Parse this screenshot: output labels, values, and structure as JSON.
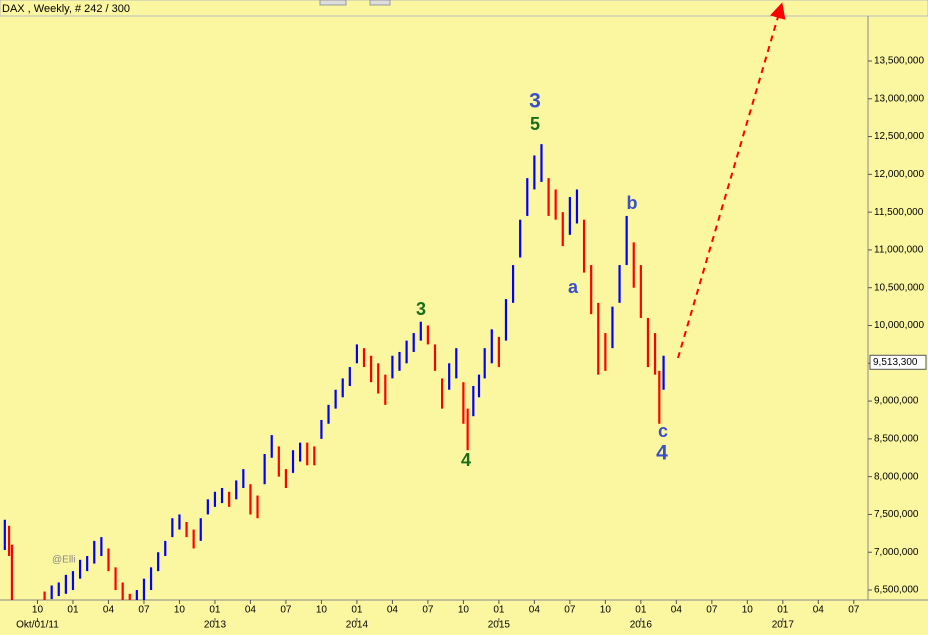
{
  "chart_data": {
    "type": "ohlc",
    "title": "DAX , Weekly, # 242 / 300",
    "xlim": [
      2011.486,
      2017.6
    ],
    "ylim": [
      6368000,
      14307000
    ],
    "xticks": [
      {
        "value": 2011.75,
        "label": "10"
      },
      {
        "value": 2012.0,
        "label": "01"
      },
      {
        "value": 2012.25,
        "label": "04"
      },
      {
        "value": 2012.5,
        "label": "07"
      },
      {
        "value": 2012.75,
        "label": "10"
      },
      {
        "value": 2013.0,
        "label": "01"
      },
      {
        "value": 2013.25,
        "label": "04"
      },
      {
        "value": 2013.5,
        "label": "07"
      },
      {
        "value": 2013.75,
        "label": "10"
      },
      {
        "value": 2014.0,
        "label": "01"
      },
      {
        "value": 2014.25,
        "label": "04"
      },
      {
        "value": 2014.5,
        "label": "07"
      },
      {
        "value": 2014.75,
        "label": "10"
      },
      {
        "value": 2015.0,
        "label": "01"
      },
      {
        "value": 2015.25,
        "label": "04"
      },
      {
        "value": 2015.5,
        "label": "07"
      },
      {
        "value": 2015.75,
        "label": "10"
      },
      {
        "value": 2016.0,
        "label": "01"
      },
      {
        "value": 2016.25,
        "label": "04"
      },
      {
        "value": 2016.5,
        "label": "07"
      },
      {
        "value": 2016.75,
        "label": "10"
      },
      {
        "value": 2017.0,
        "label": "01"
      },
      {
        "value": 2017.25,
        "label": "04"
      },
      {
        "value": 2017.5,
        "label": "07"
      }
    ],
    "xticks_major": [
      {
        "value": 2011.75,
        "label": "Okt/01/11"
      },
      {
        "value": 2013.0,
        "label": "2013"
      },
      {
        "value": 2014.0,
        "label": "2014"
      },
      {
        "value": 2015.0,
        "label": "2015"
      },
      {
        "value": 2016.0,
        "label": "2016"
      },
      {
        "value": 2017.0,
        "label": "2017"
      }
    ],
    "yticks": [
      {
        "value": 6500000,
        "label": "6,500,000"
      },
      {
        "value": 7000000,
        "label": "7,000,000"
      },
      {
        "value": 7500000,
        "label": "7,500,000"
      },
      {
        "value": 8000000,
        "label": "8,000,000"
      },
      {
        "value": 8500000,
        "label": "8,500,000"
      },
      {
        "value": 9000000,
        "label": "9,000,000"
      },
      {
        "value": 9500000,
        "label": "9,500,000"
      },
      {
        "value": 10000000,
        "label": "10,000,000"
      },
      {
        "value": 10500000,
        "label": "10,500,000"
      },
      {
        "value": 11000000,
        "label": "11,000,000"
      },
      {
        "value": 11500000,
        "label": "11,500,000"
      },
      {
        "value": 12000000,
        "label": "12,000,000"
      },
      {
        "value": 12500000,
        "label": "12,500,000"
      },
      {
        "value": 13000000,
        "label": "13,000,000"
      },
      {
        "value": 13500000,
        "label": "13,500,000"
      }
    ],
    "up_color": "#0000ff",
    "down_color": "#ff0000",
    "last_price": {
      "value": 9513300,
      "label": "9,513,300"
    },
    "bars": {
      "x": [
        2011.52,
        2011.55,
        2011.57,
        2011.8,
        2011.85,
        2011.9,
        2011.95,
        2012.0,
        2012.05,
        2012.1,
        2012.15,
        2012.2,
        2012.25,
        2012.3,
        2012.35,
        2012.4,
        2012.45,
        2012.5,
        2012.55,
        2012.6,
        2012.65,
        2012.7,
        2012.75,
        2012.8,
        2012.85,
        2012.9,
        2012.95,
        2013.0,
        2013.05,
        2013.1,
        2013.15,
        2013.2,
        2013.25,
        2013.3,
        2013.35,
        2013.4,
        2013.45,
        2013.5,
        2013.55,
        2013.6,
        2013.65,
        2013.7,
        2013.75,
        2013.8,
        2013.85,
        2013.9,
        2013.95,
        2014.0,
        2014.05,
        2014.1,
        2014.15,
        2014.2,
        2014.25,
        2014.3,
        2014.35,
        2014.4,
        2014.45,
        2014.5,
        2014.55,
        2014.6,
        2014.65,
        2014.7,
        2014.75,
        2014.78,
        2014.82,
        2014.86,
        2014.9,
        2014.95,
        2015.0,
        2015.05,
        2015.1,
        2015.15,
        2015.2,
        2015.25,
        2015.3,
        2015.35,
        2015.4,
        2015.45,
        2015.5,
        2015.55,
        2015.6,
        2015.65,
        2015.7,
        2015.75,
        2015.8,
        2015.85,
        2015.9,
        2015.95,
        2016.0,
        2016.05,
        2016.1,
        2016.13,
        2016.16
      ],
      "high": [
        7430000,
        7350000,
        7100000,
        6480000,
        6560000,
        6600000,
        6700000,
        6750000,
        6900000,
        6950000,
        7150000,
        7200000,
        7050000,
        6800000,
        6600000,
        6450000,
        6500000,
        6650000,
        6800000,
        7000000,
        7150000,
        7450000,
        7500000,
        7400000,
        7300000,
        7450000,
        7700000,
        7800000,
        7850000,
        7800000,
        7950000,
        8100000,
        7900000,
        7750000,
        8300000,
        8550000,
        8400000,
        8100000,
        8350000,
        8450000,
        8450000,
        8400000,
        8750000,
        8950000,
        9150000,
        9300000,
        9450000,
        9750000,
        9700000,
        9600000,
        9500000,
        9350000,
        9600000,
        9650000,
        9800000,
        9900000,
        10050000,
        10000000,
        9750000,
        9300000,
        9500000,
        9700000,
        9250000,
        8900000,
        9200000,
        9350000,
        9700000,
        9950000,
        9850000,
        10350000,
        10800000,
        11400000,
        11950000,
        12250000,
        12400000,
        11950000,
        11800000,
        11500000,
        11700000,
        11800000,
        11400000,
        10800000,
        10300000,
        9900000,
        10250000,
        10800000,
        11450000,
        11100000,
        10800000,
        10100000,
        9900000,
        9400000,
        9600000
      ],
      "low": [
        7030000,
        6950000,
        6300000,
        6300000,
        6380000,
        6420000,
        6450000,
        6500000,
        6650000,
        6750000,
        6850000,
        6950000,
        6750000,
        6500000,
        6350000,
        6250000,
        6250000,
        6350000,
        6500000,
        6750000,
        6950000,
        7200000,
        7300000,
        7200000,
        7050000,
        7150000,
        7500000,
        7600000,
        7650000,
        7600000,
        7700000,
        7850000,
        7500000,
        7450000,
        7900000,
        8250000,
        8000000,
        7850000,
        8050000,
        8200000,
        8150000,
        8150000,
        8500000,
        8700000,
        8900000,
        9050000,
        9200000,
        9500000,
        9450000,
        9250000,
        9100000,
        8950000,
        9300000,
        9400000,
        9500000,
        9650000,
        9800000,
        9750000,
        9400000,
        8900000,
        9150000,
        9300000,
        8700000,
        8350000,
        8800000,
        9050000,
        9300000,
        9500000,
        9450000,
        9800000,
        10300000,
        10900000,
        11450000,
        11800000,
        11900000,
        11450000,
        11400000,
        11050000,
        11200000,
        11350000,
        10700000,
        10150000,
        9350000,
        9400000,
        9700000,
        10300000,
        10800000,
        10500000,
        10100000,
        9450000,
        9350000,
        8700000,
        9150000
      ]
    }
  },
  "annotations": {
    "wave_3_top": "3",
    "wave_5_top": "5",
    "wave_3_mid": "3",
    "wave_4_mid": "4",
    "wave_a": "a",
    "wave_b": "b",
    "wave_c": "c",
    "wave_4_end": "4",
    "author": "@Elli"
  }
}
